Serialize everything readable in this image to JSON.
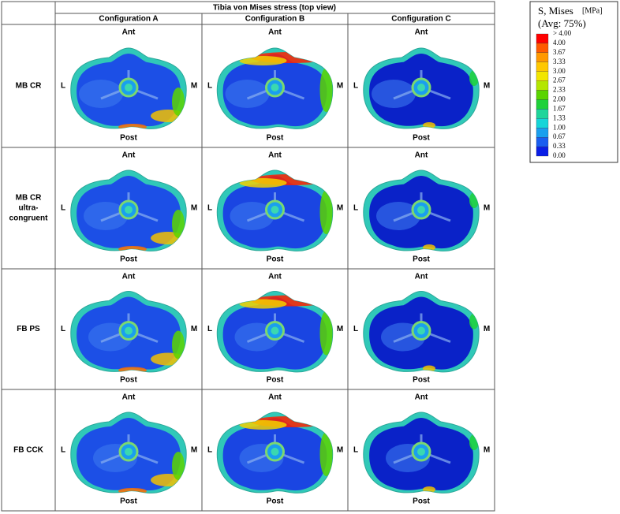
{
  "table": {
    "title": "Tibia von Mises stress (top view)",
    "columns": [
      "Configuration A",
      "Configuration B",
      "Configuration C"
    ],
    "rows": [
      {
        "label": [
          "MB CR"
        ]
      },
      {
        "label": [
          "MB CR",
          "ultra-",
          "congruent"
        ]
      },
      {
        "label": [
          "FB PS"
        ]
      },
      {
        "label": [
          "FB CCK"
        ]
      }
    ],
    "cell_labels": {
      "anterior": "Ant",
      "posterior": "Post",
      "lateral": "L",
      "medial": "M"
    }
  },
  "legend": {
    "title": "S, Mises",
    "unit": "[MPa]",
    "subtitle": "(Avg: 75%)",
    "labels": [
      "> 4.00",
      "4.00",
      "3.67",
      "3.33",
      "3.00",
      "2.67",
      "2.33",
      "2.00",
      "1.67",
      "1.33",
      "1.00",
      "0.67",
      "0.33",
      "0.00"
    ],
    "colors": [
      "#ff0000",
      "#ff5a00",
      "#ff9900",
      "#ffc800",
      "#f2e600",
      "#b4e600",
      "#5ad400",
      "#1fd13a",
      "#1ed59a",
      "#15d5d8",
      "#1a9fee",
      "#1a5ef0",
      "#0a1ee6"
    ]
  }
}
